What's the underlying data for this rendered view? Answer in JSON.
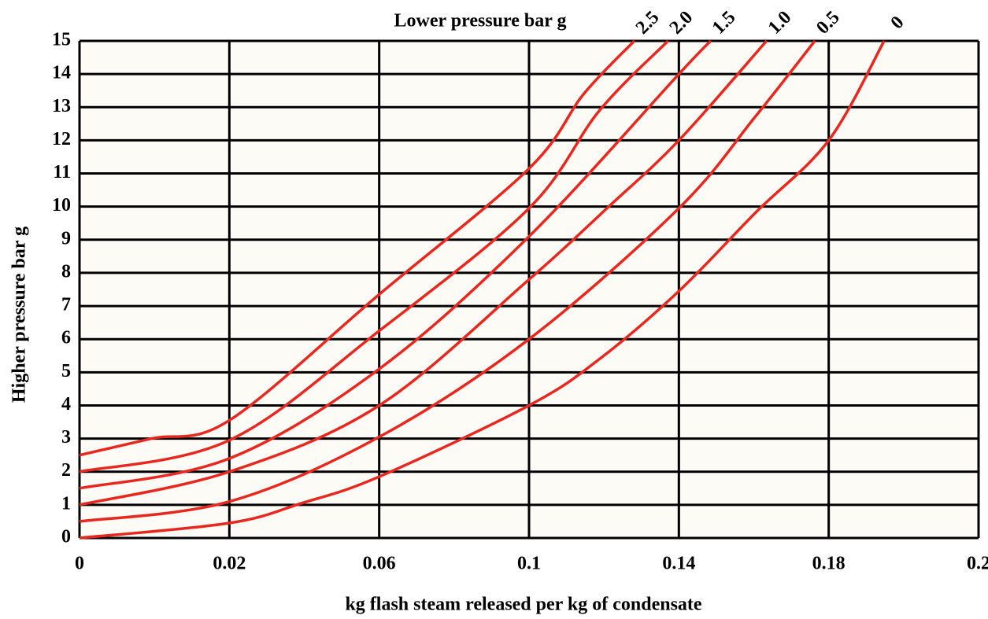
{
  "chart_data": {
    "type": "line",
    "title": "Lower pressure bar  g",
    "xlabel": "kg flash steam released per kg of condensate",
    "ylabel": "Higher pressure bar  g",
    "xlim": [
      0,
      0.2
    ],
    "xticks": [
      0,
      0.02,
      0.06,
      0.1,
      0.14,
      0.18,
      0.2
    ],
    "ylim": [
      0,
      15
    ],
    "yticks": [
      0,
      1,
      2,
      3,
      4,
      5,
      6,
      7,
      8,
      9,
      10,
      11,
      12,
      13,
      14,
      15
    ],
    "grid": true,
    "series": [
      {
        "name": "2.5",
        "color": "#e8281e",
        "x": [
          0,
          0.0096,
          0.02,
          0.06,
          0.1,
          0.1146,
          0.1281
        ],
        "values": [
          2.5,
          3.0,
          3.55,
          7.35,
          11.15,
          13.4,
          15
        ]
      },
      {
        "name": "2.0",
        "color": "#e8281e",
        "x": [
          0,
          0.02,
          0.06,
          0.1,
          0.1188,
          0.1371
        ],
        "values": [
          2,
          2.95,
          6.25,
          9.95,
          12.9,
          15
        ]
      },
      {
        "name": "1.5",
        "color": "#e8281e",
        "x": [
          0,
          0.02,
          0.06,
          0.1,
          0.14,
          0.1485
        ],
        "values": [
          1.5,
          2.4,
          5.1,
          9.1,
          14.0,
          15
        ]
      },
      {
        "name": "1.0",
        "color": "#e8281e",
        "x": [
          0,
          0.02,
          0.06,
          0.1,
          0.1208,
          0.14,
          0.1634
        ],
        "values": [
          1,
          2.0,
          4.0,
          7.8,
          9.95,
          12,
          15
        ]
      },
      {
        "name": "0.5",
        "color": "#e8281e",
        "x": [
          0,
          0.02,
          0.06,
          0.1,
          0.14,
          0.1603,
          0.1763
        ],
        "values": [
          0.5,
          1.1,
          3.05,
          6.0,
          9.95,
          12.7,
          15
        ]
      },
      {
        "name": "0",
        "color": "#e8281e",
        "x": [
          0,
          0.02,
          0.0393,
          0.06,
          0.1,
          0.1188,
          0.14,
          0.1603,
          0.18,
          0.1874
        ],
        "values": [
          0,
          0.45,
          1.05,
          1.85,
          4.0,
          5.4,
          7.45,
          9.8,
          12,
          15
        ]
      }
    ]
  }
}
